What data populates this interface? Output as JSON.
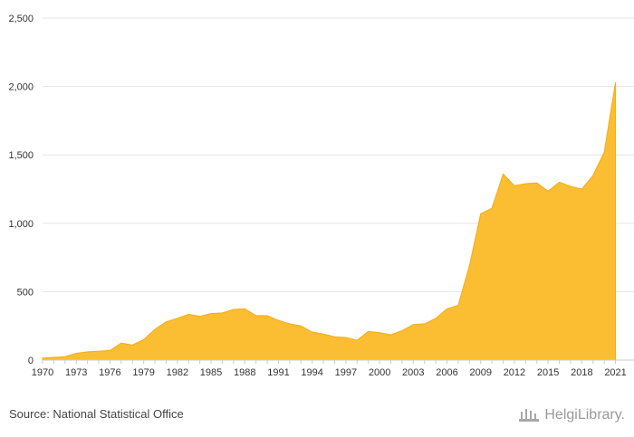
{
  "footer": {
    "source": "Source: National Statistical Office",
    "brand": "HelgiLibrary."
  },
  "colors": {
    "area_fill": "#fbbe32",
    "area_stroke": "#f4ac14",
    "grid": "#e6e6e6",
    "axis": "#cccccc"
  },
  "chart_data": {
    "type": "area",
    "title": "",
    "xlabel": "",
    "ylabel": "",
    "ylim": [
      0,
      2500
    ],
    "yticks": [
      0,
      500,
      1000,
      1500,
      2000,
      2500
    ],
    "ytick_labels": [
      "0",
      "500",
      "1,000",
      "1,500",
      "2,000",
      "2,500"
    ],
    "xtick_labels": [
      "1970",
      "1973",
      "1976",
      "1979",
      "1982",
      "1985",
      "1988",
      "1991",
      "1994",
      "1997",
      "2000",
      "2003",
      "2006",
      "2009",
      "2012",
      "2015",
      "2018",
      "2021"
    ],
    "grid": true,
    "legend": "none",
    "x": [
      1970,
      1971,
      1972,
      1973,
      1974,
      1975,
      1976,
      1977,
      1978,
      1979,
      1980,
      1981,
      1982,
      1983,
      1984,
      1985,
      1986,
      1987,
      1988,
      1989,
      1990,
      1991,
      1992,
      1993,
      1994,
      1995,
      1996,
      1997,
      1998,
      1999,
      2000,
      2001,
      2002,
      2003,
      2004,
      2005,
      2006,
      2007,
      2008,
      2009,
      2010,
      2011,
      2012,
      2013,
      2014,
      2015,
      2016,
      2017,
      2018,
      2019,
      2020,
      2021
    ],
    "values": [
      15,
      20,
      25,
      50,
      60,
      65,
      70,
      125,
      110,
      150,
      225,
      280,
      305,
      335,
      320,
      340,
      345,
      370,
      375,
      325,
      325,
      290,
      265,
      250,
      205,
      190,
      170,
      165,
      145,
      210,
      200,
      185,
      215,
      260,
      265,
      305,
      375,
      400,
      690,
      1070,
      1110,
      1360,
      1275,
      1290,
      1295,
      1235,
      1300,
      1270,
      1250,
      1350,
      1520,
      2030
    ]
  }
}
